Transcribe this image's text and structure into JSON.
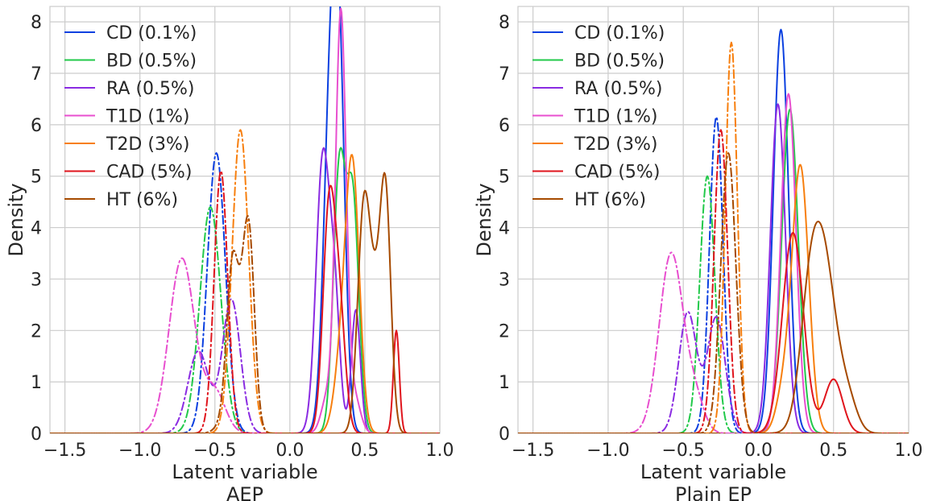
{
  "chart_data": [
    {
      "type": "line",
      "title": "",
      "xlabel": "Latent variable",
      "xlabel_sub": "AEP",
      "ylabel": "Density",
      "xlim": [
        -1.6,
        1.0
      ],
      "ylim": [
        0,
        8.3
      ],
      "xticks": [
        -1.5,
        -1.0,
        -0.5,
        0.0,
        0.5,
        1.0
      ],
      "xtick_labels": [
        "−1.5",
        "−1.0",
        "−0.5",
        "0.0",
        "0.5",
        "1.0"
      ],
      "yticks": [
        0,
        1,
        2,
        3,
        4,
        5,
        6,
        7,
        8
      ],
      "ytick_labels": [
        "0",
        "1",
        "2",
        "3",
        "4",
        "5",
        "6",
        "7",
        "8"
      ],
      "grid": true,
      "legend": {
        "placement": "top-left",
        "entries": [
          "CD (0.1%)",
          "BD (0.5%)",
          "RA (0.5%)",
          "T1D (1%)",
          "T2D (3%)",
          "CAD (5%)",
          "HT (6%)"
        ]
      },
      "series": [
        {
          "name": "CD (0.1%)",
          "color": "#0b40e0",
          "style": "solid",
          "components": [
            [
              0.27,
              6.2,
              0.045
            ],
            [
              0.33,
              6.1,
              0.04
            ]
          ]
        },
        {
          "name": "BD (0.5%)",
          "color": "#22c94a",
          "style": "solid",
          "components": [
            [
              0.33,
              5.1,
              0.04
            ],
            [
              0.42,
              4.5,
              0.04
            ]
          ]
        },
        {
          "name": "RA (0.5%)",
          "color": "#8a2be2",
          "style": "solid",
          "components": [
            [
              0.22,
              5.35,
              0.045
            ],
            [
              0.3,
              2.3,
              0.035
            ],
            [
              0.44,
              2.4,
              0.03
            ]
          ]
        },
        {
          "name": "T1D (1%)",
          "color": "#e84fcf",
          "style": "solid",
          "components": [
            [
              0.34,
              8.15,
              0.035
            ],
            [
              0.25,
              0.7,
              0.04
            ],
            [
              0.43,
              0.7,
              0.04
            ]
          ]
        },
        {
          "name": "T2D (3%)",
          "color": "#f77f0e",
          "style": "solid",
          "components": [
            [
              0.42,
              4.8,
              0.045
            ],
            [
              0.35,
              1.5,
              0.05
            ]
          ]
        },
        {
          "name": "CAD (5%)",
          "color": "#e0151d",
          "style": "solid",
          "components": [
            [
              0.26,
              4.2,
              0.04
            ],
            [
              0.33,
              2.3,
              0.04
            ],
            [
              0.71,
              2.0,
              0.02
            ]
          ]
        },
        {
          "name": "HT (6%)",
          "color": "#a64a00",
          "style": "solid",
          "components": [
            [
              0.49,
              3.9,
              0.04
            ],
            [
              0.64,
              4.0,
              0.035
            ],
            [
              0.57,
              2.5,
              0.05
            ]
          ]
        },
        {
          "name": "CD (0.1%)",
          "color": "#0b40e0",
          "style": "dashdot",
          "components": [
            [
              -0.49,
              5.45,
              0.06
            ]
          ]
        },
        {
          "name": "BD (0.5%)",
          "color": "#22c94a",
          "style": "dashdot",
          "components": [
            [
              -0.53,
              4.4,
              0.07
            ]
          ]
        },
        {
          "name": "RA (0.5%)",
          "color": "#8a2be2",
          "style": "dashdot",
          "components": [
            [
              -0.61,
              1.6,
              0.07
            ],
            [
              -0.39,
              2.6,
              0.06
            ]
          ]
        },
        {
          "name": "T1D (1%)",
          "color": "#e84fcf",
          "style": "dashdot",
          "components": [
            [
              -0.72,
              3.4,
              0.085
            ],
            [
              -0.5,
              0.8,
              0.07
            ]
          ]
        },
        {
          "name": "T2D (3%)",
          "color": "#f77f0e",
          "style": "dashdot",
          "components": [
            [
              -0.33,
              5.9,
              0.055
            ]
          ]
        },
        {
          "name": "CAD (5%)",
          "color": "#e0151d",
          "style": "dashdot",
          "components": [
            [
              -0.46,
              5.1,
              0.045
            ]
          ]
        },
        {
          "name": "HT (6%)",
          "color": "#a64a00",
          "style": "dashdot",
          "components": [
            [
              -0.38,
              3.3,
              0.04
            ],
            [
              -0.28,
              3.9,
              0.04
            ],
            [
              -0.25,
              0.3,
              0.03
            ],
            [
              -0.45,
              0.15,
              0.05
            ]
          ]
        }
      ]
    },
    {
      "type": "line",
      "title": "",
      "xlabel": "Latent variable",
      "xlabel_sub": "Plain EP",
      "ylabel": "Density",
      "xlim": [
        -1.6,
        1.0
      ],
      "ylim": [
        0,
        8.3
      ],
      "xticks": [
        -1.5,
        -1.0,
        -0.5,
        0.0,
        0.5,
        1.0
      ],
      "xtick_labels": [
        "−1.5",
        "−1.0",
        "−0.5",
        "0.0",
        "0.5",
        "1.0"
      ],
      "yticks": [
        0,
        1,
        2,
        3,
        4,
        5,
        6,
        7,
        8
      ],
      "ytick_labels": [
        "0",
        "1",
        "2",
        "3",
        "4",
        "5",
        "6",
        "7",
        "8"
      ],
      "grid": true,
      "legend": {
        "placement": "top-left",
        "entries": [
          "CD (0.1%)",
          "BD (0.5%)",
          "RA (0.5%)",
          "T1D (1%)",
          "T2D (3%)",
          "CAD (5%)",
          "HT (6%)"
        ]
      },
      "series": [
        {
          "name": "CD (0.1%)",
          "color": "#0b40e0",
          "style": "solid",
          "components": [
            [
              0.15,
              7.85,
              0.05
            ]
          ]
        },
        {
          "name": "BD (0.5%)",
          "color": "#22c94a",
          "style": "solid",
          "components": [
            [
              0.21,
              6.3,
              0.055
            ]
          ]
        },
        {
          "name": "RA (0.5%)",
          "color": "#8a2be2",
          "style": "solid",
          "components": [
            [
              0.13,
              6.4,
              0.05
            ]
          ]
        },
        {
          "name": "T1D (1%)",
          "color": "#e84fcf",
          "style": "solid",
          "components": [
            [
              0.2,
              6.6,
              0.05
            ]
          ]
        },
        {
          "name": "T2D (3%)",
          "color": "#f77f0e",
          "style": "solid",
          "components": [
            [
              0.28,
              5.15,
              0.055
            ],
            [
              0.17,
              0.8,
              0.05
            ]
          ]
        },
        {
          "name": "CAD (5%)",
          "color": "#e0151d",
          "style": "solid",
          "components": [
            [
              0.23,
              3.9,
              0.07
            ],
            [
              0.5,
              1.05,
              0.06
            ]
          ]
        },
        {
          "name": "HT (6%)",
          "color": "#a64a00",
          "style": "solid",
          "components": [
            [
              0.42,
              3.7,
              0.09
            ],
            [
              0.33,
              1.0,
              0.06
            ],
            [
              0.6,
              0.5,
              0.06
            ]
          ]
        },
        {
          "name": "CD (0.1%)",
          "color": "#0b40e0",
          "style": "dashdot",
          "components": [
            [
              -0.28,
              6.15,
              0.045
            ]
          ]
        },
        {
          "name": "BD (0.5%)",
          "color": "#22c94a",
          "style": "dashdot",
          "components": [
            [
              -0.34,
              5.0,
              0.05
            ]
          ]
        },
        {
          "name": "RA (0.5%)",
          "color": "#8a2be2",
          "style": "dashdot",
          "components": [
            [
              -0.47,
              2.35,
              0.06
            ],
            [
              -0.28,
              2.25,
              0.06
            ]
          ]
        },
        {
          "name": "T1D (1%)",
          "color": "#e84fcf",
          "style": "dashdot",
          "components": [
            [
              -0.58,
              3.5,
              0.08
            ],
            [
              -0.42,
              0.6,
              0.06
            ]
          ]
        },
        {
          "name": "T2D (3%)",
          "color": "#f77f0e",
          "style": "dashdot",
          "components": [
            [
              -0.18,
              7.6,
              0.04
            ]
          ]
        },
        {
          "name": "CAD (5%)",
          "color": "#e0151d",
          "style": "dashdot",
          "components": [
            [
              -0.25,
              5.9,
              0.045
            ]
          ]
        },
        {
          "name": "HT (6%)",
          "color": "#a64a00",
          "style": "dashdot",
          "components": [
            [
              -0.2,
              5.45,
              0.05
            ]
          ]
        }
      ]
    }
  ]
}
